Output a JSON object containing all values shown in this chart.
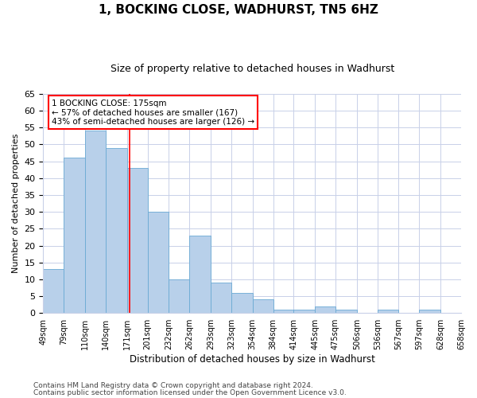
{
  "title": "1, BOCKING CLOSE, WADHURST, TN5 6HZ",
  "subtitle": "Size of property relative to detached houses in Wadhurst",
  "xlabel": "Distribution of detached houses by size in Wadhurst",
  "ylabel": "Number of detached properties",
  "heights": [
    13,
    46,
    54,
    49,
    43,
    30,
    10,
    23,
    9,
    6,
    4,
    1,
    1,
    2,
    1,
    0,
    1,
    0,
    1
  ],
  "bin_edges": [
    49,
    79,
    110,
    140,
    171,
    201,
    232,
    262,
    293,
    323,
    354,
    384,
    414,
    445,
    475,
    506,
    536,
    567,
    597,
    628
  ],
  "xtick_labels": [
    "49sqm",
    "79sqm",
    "110sqm",
    "140sqm",
    "171sqm",
    "201sqm",
    "232sqm",
    "262sqm",
    "293sqm",
    "323sqm",
    "354sqm",
    "384sqm",
    "414sqm",
    "445sqm",
    "475sqm",
    "506sqm",
    "536sqm",
    "567sqm",
    "597sqm",
    "628sqm",
    "658sqm"
  ],
  "bar_color": "#b8d0ea",
  "bar_edge_color": "#6aaad4",
  "red_line_x": 175,
  "annotation_text": "1 BOCKING CLOSE: 175sqm\n← 57% of detached houses are smaller (167)\n43% of semi-detached houses are larger (126) →",
  "ylim": [
    0,
    65
  ],
  "yticks": [
    0,
    5,
    10,
    15,
    20,
    25,
    30,
    35,
    40,
    45,
    50,
    55,
    60,
    65
  ],
  "footnote1": "Contains HM Land Registry data © Crown copyright and database right 2024.",
  "footnote2": "Contains public sector information licensed under the Open Government Licence v3.0.",
  "background_color": "#ffffff",
  "grid_color": "#c8d0e8",
  "title_fontsize": 11,
  "subtitle_fontsize": 9
}
